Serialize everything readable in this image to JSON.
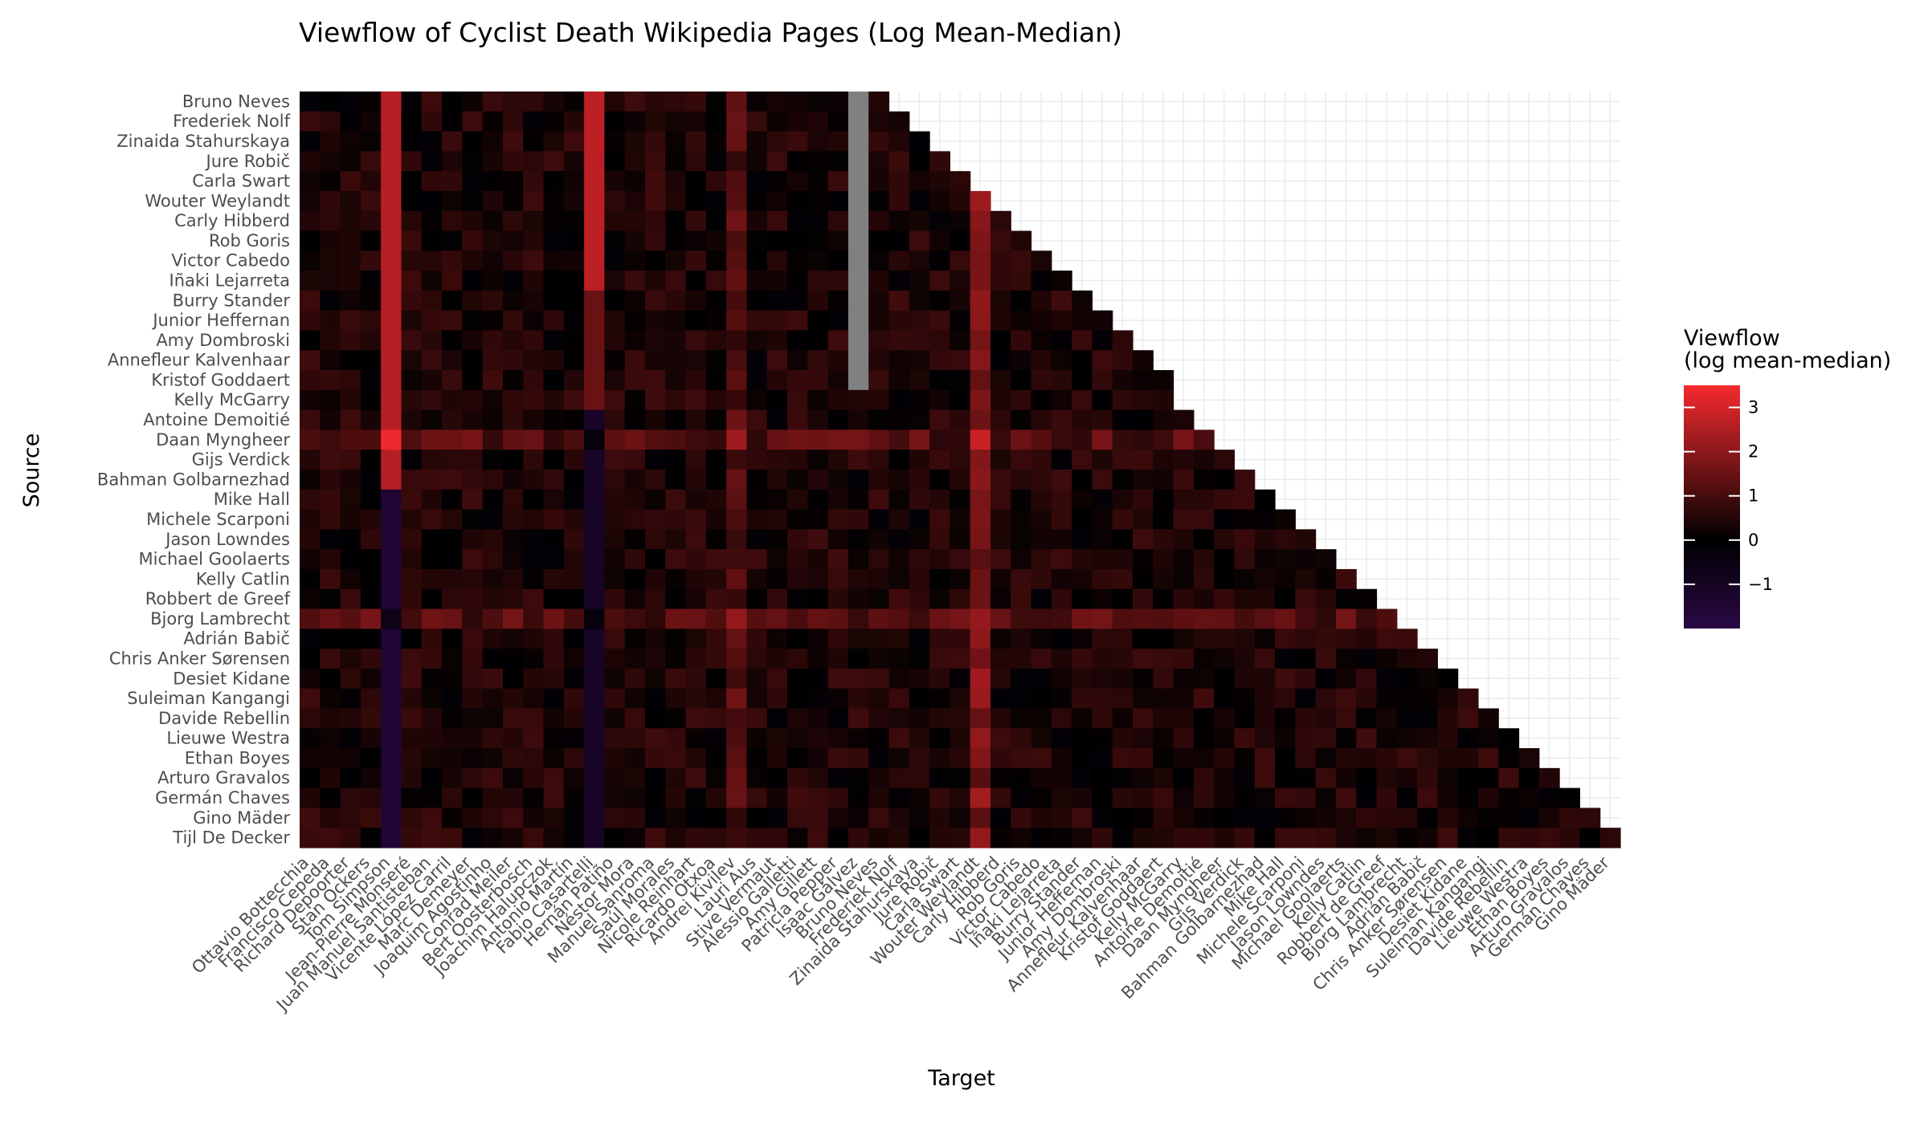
{
  "chart_data": {
    "type": "heatmap",
    "title": "Viewflow of Cyclist Death Wikipedia Pages (Log Mean-Median)",
    "xlabel": "Target",
    "ylabel": "Source",
    "legend": {
      "title_line1": "Viewflow",
      "title_line2": "(log mean-median)",
      "ticks": [
        3,
        2,
        1,
        0,
        -1
      ],
      "tick_labels": [
        "3",
        "2",
        "1",
        "0",
        "−1"
      ],
      "range": [
        -2,
        3.5
      ],
      "placement": "right"
    },
    "colors": {
      "low": "#2a0845",
      "mid": "#000000",
      "high": "#f52a2f",
      "na": "#808080",
      "grid": "#ebebeb"
    },
    "targets": [
      "Ottavio Bottecchia",
      "Francisco Cepeda",
      "Richard Depoorter",
      "Stan Ockers",
      "Tom Simpson",
      "Jean-Pierre Monseré",
      "Juan Manuel Santisteban",
      "Vicente López Carril",
      "Marc Demeyer",
      "Joaquim Agostinho",
      "Conrad Meiler",
      "Bert Oosterbosch",
      "Joachim Halupczok",
      "Antonio Martín",
      "Fabio Casartelli",
      "Hernán Patiño",
      "Néstor Mora",
      "Manuel Sanroma",
      "Saúl Morales",
      "Nicole Reinhart",
      "Ricardo Otxoa",
      "Andrei Kivilev",
      "Lauri Aus",
      "Stive Vermaut",
      "Alessio Galletti",
      "Amy Gillett",
      "Patricia Pepper",
      "Isaac Gálvez",
      "Bruno Neves",
      "Frederiek Nolf",
      "Zinaida Stahurskaya",
      "Jure Robič",
      "Carla Swart",
      "Wouter Weylandt",
      "Carly Hibberd",
      "Rob Goris",
      "Victor Cabedo",
      "Iñaki Lejarreta",
      "Burry Stander",
      "Junior Heffernan",
      "Amy Dombroski",
      "Annefleur Kalvenhaar",
      "Kristof Goddaert",
      "Kelly McGarry",
      "Antoine Demoitié",
      "Daan Myngheer",
      "Gijs Verdick",
      "Bahman Golbarnezhad",
      "Mike Hall",
      "Michele Scarponi",
      "Jason Lowndes",
      "Michael Goolaerts",
      "Kelly Catlin",
      "Robbert de Greef",
      "Bjorg Lambrecht",
      "Adrián Babič",
      "Chris Anker Sørensen",
      "Desiet Kidane",
      "Suleiman Kangangi",
      "Davide Rebellin",
      "Lieuwe Westra",
      "Ethan Boyes",
      "Arturo Gravalos",
      "Germán Chaves",
      "Gino Mäder"
    ],
    "sources": [
      "Bruno Neves",
      "Frederiek Nolf",
      "Zinaida Stahurskaya",
      "Jure Robič",
      "Carla Swart",
      "Wouter Weylandt",
      "Carly Hibberd",
      "Rob Goris",
      "Victor Cabedo",
      "Iñaki Lejarreta",
      "Burry Stander",
      "Junior Heffernan",
      "Amy Dombroski",
      "Annefleur Kalvenhaar",
      "Kristof Goddaert",
      "Kelly McGarry",
      "Antoine Demoitié",
      "Daan Myngheer",
      "Gijs Verdick",
      "Bahman Golbarnezhad",
      "Mike Hall",
      "Michele Scarponi",
      "Jason Lowndes",
      "Michael Goolaerts",
      "Kelly Catlin",
      "Robbert de Greef",
      "Bjorg Lambrecht",
      "Adrián Babič",
      "Chris Anker Sørensen",
      "Desiet Kidane",
      "Suleiman Kangangi",
      "Davide Rebellin",
      "Lieuwe Westra",
      "Ethan Boyes",
      "Arturo Gravalos",
      "Germán Chaves",
      "Gino Mäder",
      "Tijl De Decker"
    ],
    "grid": true
  }
}
